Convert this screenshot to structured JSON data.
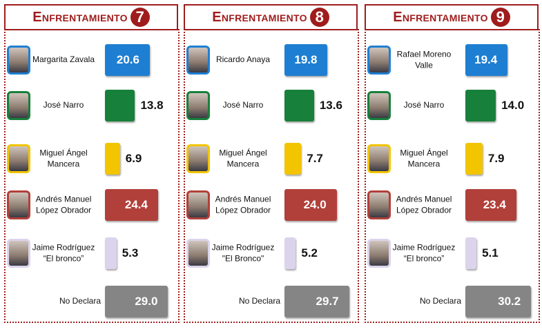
{
  "chart_data": [
    {
      "type": "bar",
      "orientation": "horizontal",
      "title": "Enfrentamiento",
      "badge": "7",
      "categories": [
        "Margarita Zavala",
        "José Narro",
        "Miguel Ángel\nMancera",
        "Andrés Manuel\nLópez Obrador",
        "Jaime Rodríguez\n“El bronco”",
        "No Declara"
      ],
      "values": [
        20.6,
        13.8,
        6.9,
        24.4,
        5.3,
        29.0
      ],
      "value_labels": [
        "20.6",
        "13.8",
        "6.9",
        "24.4",
        "5.3",
        "29.0"
      ],
      "colors": [
        "#1e7fd2",
        "#17803a",
        "#f2c500",
        "#b1403a",
        "#dcd4ec",
        "#858585"
      ]
    },
    {
      "type": "bar",
      "orientation": "horizontal",
      "title": "Enfrentamiento",
      "badge": "8",
      "categories": [
        "Ricardo Anaya",
        "José Narro",
        "Miguel Ángel\nMancera",
        "Andrés Manuel\nLópez Obrador",
        "Jaime Rodríguez\n\"El Bronco\"",
        "No Declara"
      ],
      "values": [
        19.8,
        13.6,
        7.7,
        24.0,
        5.2,
        29.7
      ],
      "value_labels": [
        "19.8",
        "13.6",
        "7.7",
        "24.0",
        "5.2",
        "29.7"
      ],
      "colors": [
        "#1e7fd2",
        "#17803a",
        "#f2c500",
        "#b1403a",
        "#dcd4ec",
        "#858585"
      ]
    },
    {
      "type": "bar",
      "orientation": "horizontal",
      "title": "Enfrentamiento",
      "badge": "9",
      "categories": [
        "Rafael Moreno\nValle",
        "José Narro",
        "Miguel  Ángel\nMancera",
        "Andrés  Manuel\nLópez  Obrador",
        "Jaime Rodríguez\n“El bronco”",
        "No Declara"
      ],
      "values": [
        19.4,
        14.0,
        7.9,
        23.4,
        5.1,
        30.2
      ],
      "value_labels": [
        "19.4",
        "14.0",
        "7.9",
        "23.4",
        "5.1",
        "30.2"
      ],
      "colors": [
        "#1e7fd2",
        "#17803a",
        "#f2c500",
        "#b1403a",
        "#dcd4ec",
        "#858585"
      ]
    }
  ]
}
